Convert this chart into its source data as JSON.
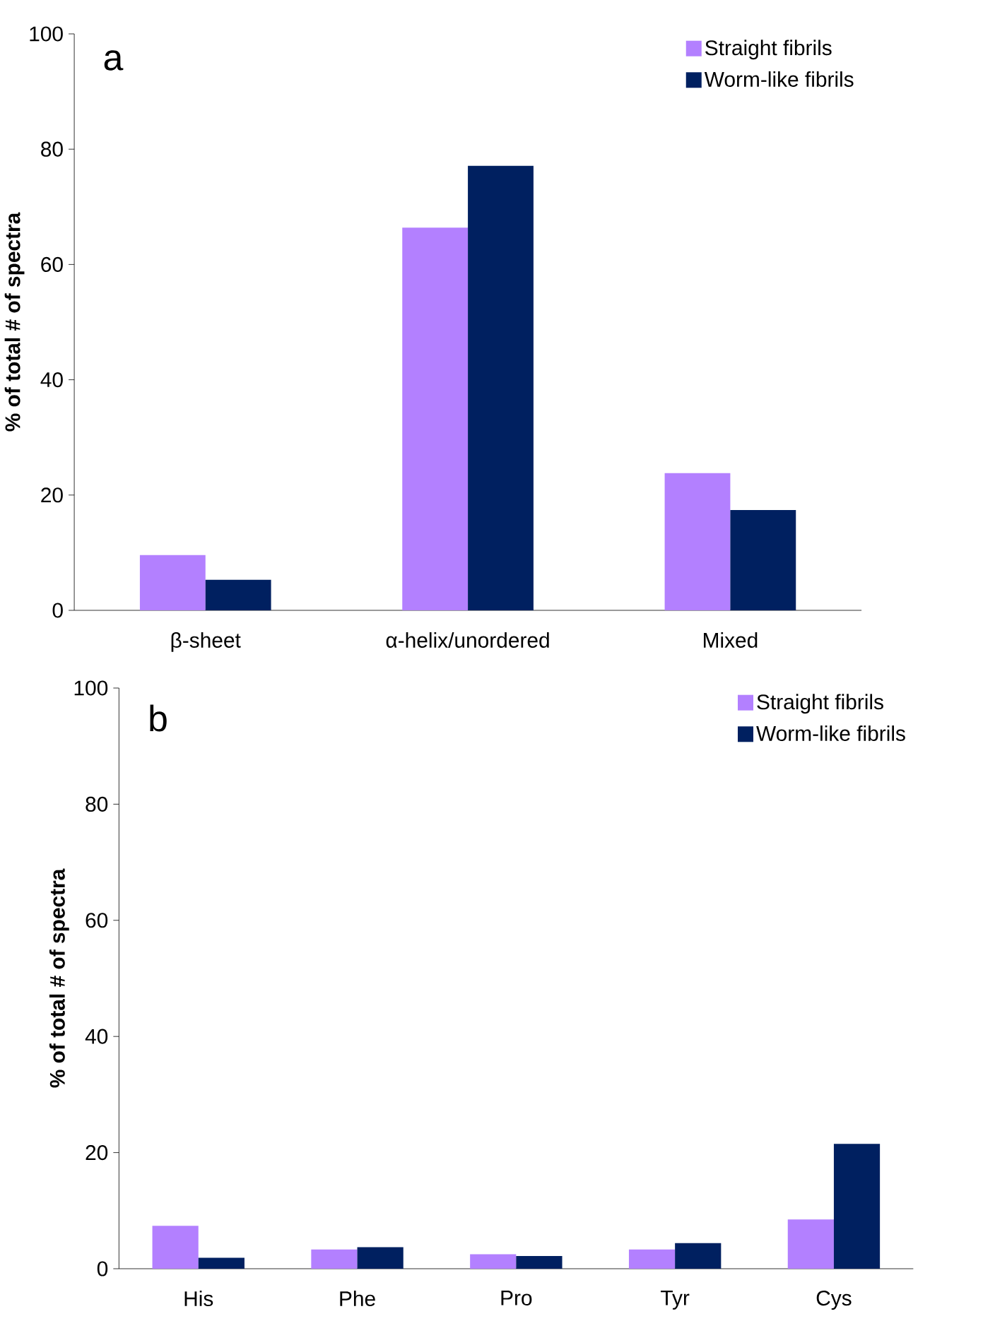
{
  "chart_data": [
    {
      "type": "bar",
      "categories": [
        "β-sheet",
        "α-helix/unordered",
        "Mixed"
      ],
      "ylabel": "% of total # of spectra",
      "ylim": [
        0,
        100
      ],
      "yticks": [
        0,
        20,
        40,
        60,
        80,
        100
      ],
      "legend": "top right",
      "annotations": [
        "a"
      ],
      "series": [
        {
          "name": "Straight fibrils",
          "color": "#b380ff",
          "values": [
            9.6,
            66.4,
            23.8
          ]
        },
        {
          "name": "Worm-like fibrils",
          "color": "#002060",
          "values": [
            5.3,
            77.1,
            17.4
          ]
        }
      ]
    },
    {
      "type": "bar",
      "categories": [
        "His",
        "Phe",
        "Pro",
        "Tyr",
        "Cys"
      ],
      "ylabel": "% of total # of spectra",
      "ylim": [
        0,
        100
      ],
      "yticks": [
        0,
        20,
        40,
        60,
        80,
        100
      ],
      "legend": "top right",
      "annotations": [
        "b"
      ],
      "series": [
        {
          "name": "Straight fibrils",
          "color": "#b380ff",
          "values": [
            7.4,
            3.3,
            2.5,
            3.3,
            8.5
          ]
        },
        {
          "name": "Worm-like fibrils",
          "color": "#002060",
          "values": [
            1.9,
            3.7,
            2.2,
            4.4,
            21.5
          ]
        }
      ]
    }
  ]
}
